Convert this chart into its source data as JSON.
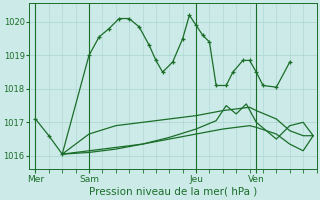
{
  "bg_color": "#cceae7",
  "grid_color": "#aad4d0",
  "line_color": "#1a6e2a",
  "title": "Pression niveau de la mer( hPa )",
  "ylim": [
    1015.6,
    1020.55
  ],
  "yticks": [
    1016,
    1017,
    1018,
    1019,
    1020
  ],
  "xtick_labels": [
    "Mer",
    "Sam",
    "Jeu",
    "Ven"
  ],
  "xtick_positions": [
    0,
    16,
    48,
    66
  ],
  "xlim": [
    -2,
    84
  ],
  "series1_x": [
    0,
    4,
    8,
    16,
    19,
    22,
    25,
    28,
    31,
    34,
    36,
    38,
    41,
    44,
    46,
    48,
    50,
    52,
    54,
    57,
    59,
    62,
    64,
    66,
    68,
    72,
    76
  ],
  "series1_y": [
    1017.1,
    1016.6,
    1016.05,
    1019.0,
    1019.55,
    1019.8,
    1020.1,
    1020.1,
    1019.85,
    1019.3,
    1018.85,
    1018.5,
    1018.8,
    1019.5,
    1020.2,
    1019.9,
    1019.6,
    1019.4,
    1018.1,
    1018.1,
    1018.5,
    1018.85,
    1018.85,
    1018.5,
    1018.1,
    1018.05,
    1018.8
  ],
  "series2_x": [
    8,
    16,
    24,
    32,
    40,
    48,
    56,
    64,
    66,
    72,
    76,
    80,
    83
  ],
  "series2_y": [
    1016.05,
    1016.65,
    1016.9,
    1017.0,
    1017.1,
    1017.2,
    1017.35,
    1017.45,
    1017.35,
    1017.1,
    1016.75,
    1016.6,
    1016.6
  ],
  "series3_x": [
    8,
    16,
    24,
    32,
    40,
    48,
    56,
    64,
    66,
    72,
    76,
    80,
    83
  ],
  "series3_y": [
    1016.05,
    1016.15,
    1016.25,
    1016.35,
    1016.5,
    1016.65,
    1016.8,
    1016.9,
    1016.85,
    1016.65,
    1016.35,
    1016.15,
    1016.6
  ],
  "series4_x": [
    8,
    16,
    24,
    32,
    40,
    48,
    54,
    57,
    60,
    63,
    66,
    72,
    76,
    80,
    83
  ],
  "series4_y": [
    1016.05,
    1016.1,
    1016.2,
    1016.35,
    1016.55,
    1016.8,
    1017.05,
    1017.5,
    1017.25,
    1017.55,
    1017.0,
    1016.5,
    1016.9,
    1017.0,
    1016.6
  ],
  "vlines": [
    0,
    16,
    48,
    66
  ]
}
